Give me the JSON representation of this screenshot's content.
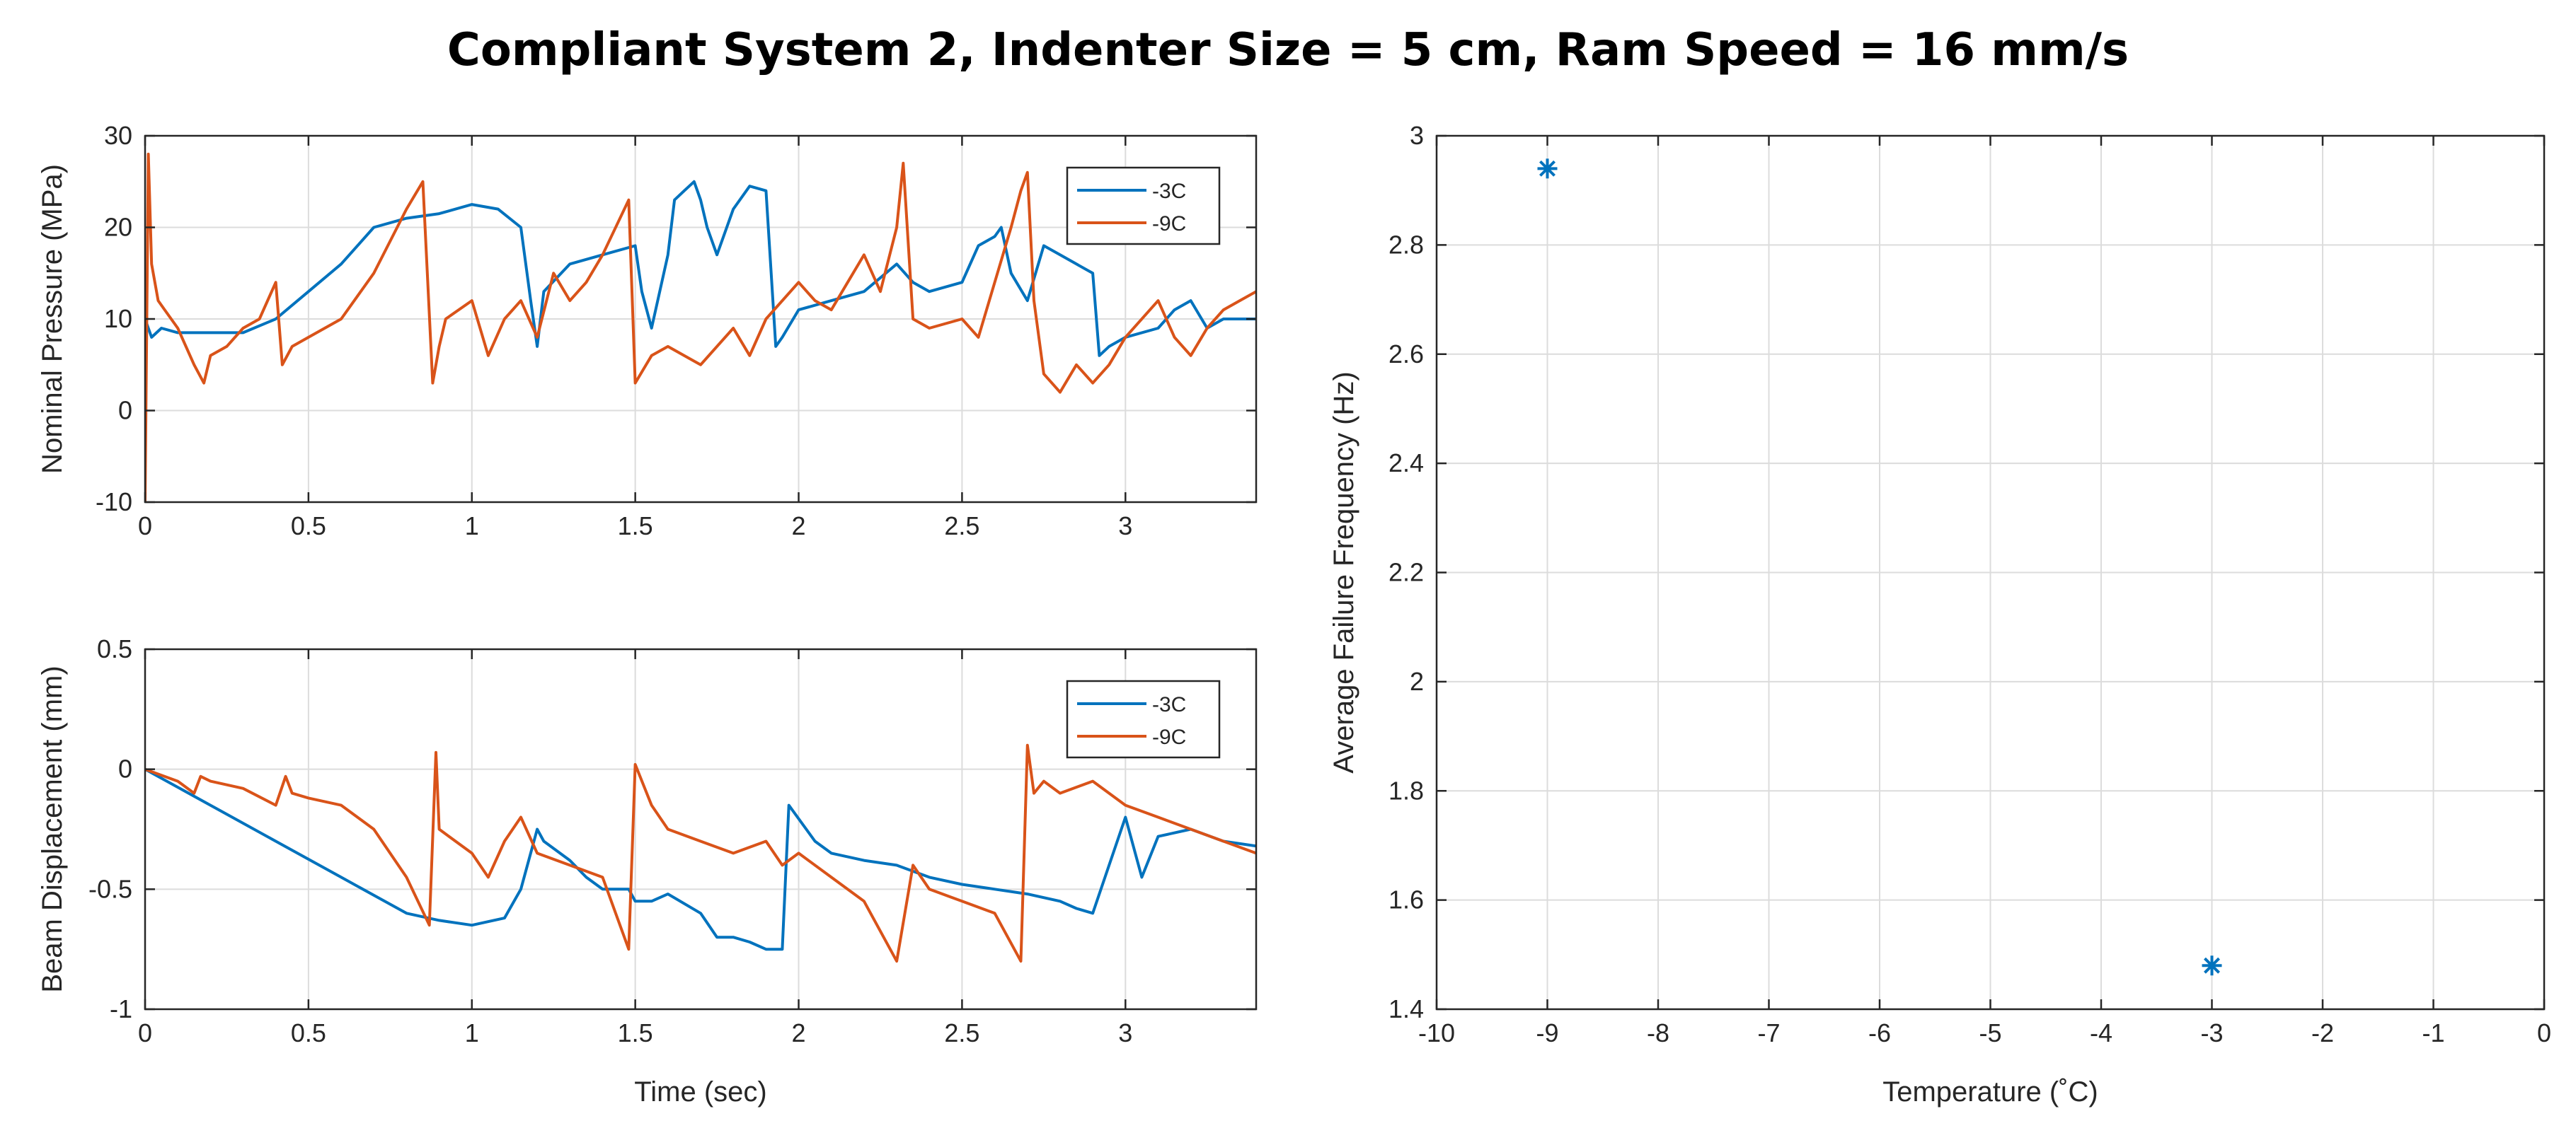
{
  "figure_title": "Compliant System 2, Indenter Size = 5 cm, Ram Speed = 16 mm/s",
  "colors": {
    "s3c": "#0072BD",
    "s9c": "#D95319",
    "grid": "#dcdcdc",
    "axis": "#262626"
  },
  "chart_data": [
    {
      "id": "pressure",
      "type": "line",
      "title": "",
      "xlabel": "",
      "ylabel": "Nominal Pressure (MPa)",
      "xlim": [
        0,
        3.4
      ],
      "ylim": [
        -10,
        30
      ],
      "xticks": [
        0,
        0.5,
        1,
        1.5,
        2,
        2.5,
        3
      ],
      "xtick_labels": [
        "0",
        "0.5",
        "1",
        "1.5",
        "2",
        "2.5",
        "3"
      ],
      "yticks": [
        -10,
        0,
        10,
        20,
        30
      ],
      "ytick_labels": [
        "-10",
        "0",
        "10",
        "20",
        "30"
      ],
      "grid": true,
      "legend_position": "top-right",
      "series": [
        {
          "name": "-3C",
          "color": "#0072BD",
          "x": [
            0,
            0.02,
            0.05,
            0.1,
            0.2,
            0.3,
            0.4,
            0.5,
            0.6,
            0.7,
            0.8,
            0.9,
            1.0,
            1.08,
            1.15,
            1.18,
            1.2,
            1.22,
            1.3,
            1.4,
            1.5,
            1.52,
            1.55,
            1.6,
            1.62,
            1.65,
            1.68,
            1.7,
            1.72,
            1.75,
            1.8,
            1.85,
            1.9,
            1.93,
            1.95,
            2.0,
            2.1,
            2.2,
            2.3,
            2.35,
            2.4,
            2.5,
            2.55,
            2.6,
            2.62,
            2.65,
            2.7,
            2.75,
            2.8,
            2.85,
            2.9,
            2.92,
            2.95,
            3.0,
            3.1,
            3.15,
            3.2,
            3.25,
            3.3,
            3.35,
            3.4
          ],
          "y": [
            10,
            8,
            9,
            8.5,
            8.5,
            8.5,
            10,
            13,
            16,
            20,
            21,
            21.5,
            22.5,
            22,
            20,
            12,
            7,
            13,
            16,
            17,
            18,
            13,
            9,
            17,
            23,
            24,
            25,
            23,
            20,
            17,
            22,
            24.5,
            24,
            7,
            8,
            11,
            12,
            13,
            16,
            14,
            13,
            14,
            18,
            19,
            20,
            15,
            12,
            18,
            17,
            16,
            15,
            6,
            7,
            8,
            9,
            11,
            12,
            9,
            10,
            10,
            10
          ]
        },
        {
          "name": "-9C",
          "color": "#D95319",
          "x": [
            0,
            0.01,
            0.02,
            0.04,
            0.06,
            0.1,
            0.15,
            0.18,
            0.2,
            0.25,
            0.3,
            0.35,
            0.4,
            0.42,
            0.45,
            0.5,
            0.6,
            0.7,
            0.8,
            0.85,
            0.88,
            0.9,
            0.92,
            1.0,
            1.05,
            1.1,
            1.15,
            1.2,
            1.25,
            1.3,
            1.35,
            1.4,
            1.48,
            1.5,
            1.55,
            1.6,
            1.7,
            1.8,
            1.85,
            1.9,
            2.0,
            2.05,
            2.1,
            2.15,
            2.2,
            2.25,
            2.3,
            2.32,
            2.35,
            2.4,
            2.5,
            2.55,
            2.6,
            2.65,
            2.68,
            2.7,
            2.72,
            2.75,
            2.8,
            2.85,
            2.9,
            2.95,
            3.0,
            3.1,
            3.15,
            3.2,
            3.25,
            3.3,
            3.35,
            3.4
          ],
          "y": [
            -10,
            28,
            16,
            12,
            11,
            9,
            5,
            3,
            6,
            7,
            9,
            10,
            14,
            5,
            7,
            8,
            10,
            15,
            22,
            25,
            3,
            7,
            10,
            12,
            6,
            10,
            12,
            8,
            15,
            12,
            14,
            17,
            23,
            3,
            6,
            7,
            5,
            9,
            6,
            10,
            14,
            12,
            11,
            14,
            17,
            13,
            20,
            27,
            10,
            9,
            10,
            8,
            14,
            20,
            24,
            26,
            12,
            4,
            2,
            5,
            3,
            5,
            8,
            12,
            8,
            6,
            9,
            11,
            12,
            13
          ]
        }
      ]
    },
    {
      "id": "displacement",
      "type": "line",
      "title": "",
      "xlabel": "Time (sec)",
      "ylabel": "Beam Displacement (mm)",
      "xlim": [
        0,
        3.4
      ],
      "ylim": [
        -1,
        0.5
      ],
      "xticks": [
        0,
        0.5,
        1,
        1.5,
        2,
        2.5,
        3
      ],
      "xtick_labels": [
        "0",
        "0.5",
        "1",
        "1.5",
        "2",
        "2.5",
        "3"
      ],
      "yticks": [
        -1,
        -0.5,
        0,
        0.5
      ],
      "ytick_labels": [
        "-1",
        "-0.5",
        "0",
        "0.5"
      ],
      "grid": true,
      "legend_position": "top-right",
      "series": [
        {
          "name": "-3C",
          "color": "#0072BD",
          "x": [
            0,
            0.2,
            0.4,
            0.6,
            0.8,
            0.9,
            1.0,
            1.1,
            1.15,
            1.2,
            1.22,
            1.3,
            1.35,
            1.4,
            1.48,
            1.5,
            1.55,
            1.6,
            1.7,
            1.75,
            1.8,
            1.85,
            1.9,
            1.95,
            1.97,
            2.05,
            2.1,
            2.2,
            2.3,
            2.4,
            2.5,
            2.6,
            2.7,
            2.8,
            2.85,
            2.9,
            2.95,
            3.0,
            3.05,
            3.1,
            3.2,
            3.3,
            3.4
          ],
          "y": [
            0,
            -0.15,
            -0.3,
            -0.45,
            -0.6,
            -0.63,
            -0.65,
            -0.62,
            -0.5,
            -0.25,
            -0.3,
            -0.38,
            -0.45,
            -0.5,
            -0.5,
            -0.55,
            -0.55,
            -0.52,
            -0.6,
            -0.7,
            -0.7,
            -0.72,
            -0.75,
            -0.75,
            -0.15,
            -0.3,
            -0.35,
            -0.38,
            -0.4,
            -0.45,
            -0.48,
            -0.5,
            -0.52,
            -0.55,
            -0.58,
            -0.6,
            -0.4,
            -0.2,
            -0.45,
            -0.28,
            -0.25,
            -0.3,
            -0.32
          ]
        },
        {
          "name": "-9C",
          "color": "#D95319",
          "x": [
            0,
            0.1,
            0.15,
            0.17,
            0.2,
            0.3,
            0.4,
            0.43,
            0.45,
            0.5,
            0.6,
            0.7,
            0.8,
            0.87,
            0.89,
            0.9,
            0.95,
            1.0,
            1.05,
            1.1,
            1.15,
            1.2,
            1.3,
            1.4,
            1.48,
            1.5,
            1.55,
            1.6,
            1.7,
            1.8,
            1.9,
            1.95,
            2.0,
            2.1,
            2.2,
            2.3,
            2.35,
            2.4,
            2.5,
            2.6,
            2.68,
            2.7,
            2.72,
            2.75,
            2.8,
            2.9,
            3.0,
            3.1,
            3.2,
            3.3,
            3.4
          ],
          "y": [
            0,
            -0.05,
            -0.1,
            -0.03,
            -0.05,
            -0.08,
            -0.15,
            -0.03,
            -0.1,
            -0.12,
            -0.15,
            -0.25,
            -0.45,
            -0.65,
            0.07,
            -0.25,
            -0.3,
            -0.35,
            -0.45,
            -0.3,
            -0.2,
            -0.35,
            -0.4,
            -0.45,
            -0.75,
            0.02,
            -0.15,
            -0.25,
            -0.3,
            -0.35,
            -0.3,
            -0.4,
            -0.35,
            -0.45,
            -0.55,
            -0.8,
            -0.4,
            -0.5,
            -0.55,
            -0.6,
            -0.8,
            0.1,
            -0.1,
            -0.05,
            -0.1,
            -0.05,
            -0.15,
            -0.2,
            -0.25,
            -0.3,
            -0.35
          ]
        }
      ]
    },
    {
      "id": "frequency",
      "type": "scatter",
      "title": "",
      "xlabel": "Temperature (˚C)",
      "ylabel": "Average Failure Frequency (Hz)",
      "xlim": [
        -10,
        0
      ],
      "ylim": [
        1.4,
        3
      ],
      "xticks": [
        -10,
        -9,
        -8,
        -7,
        -6,
        -5,
        -4,
        -3,
        -2,
        -1,
        0
      ],
      "xtick_labels": [
        "-10",
        "-9",
        "-8",
        "-7",
        "-6",
        "-5",
        "-4",
        "-3",
        "-2",
        "-1",
        "0"
      ],
      "yticks": [
        1.4,
        1.6,
        1.8,
        2,
        2.2,
        2.4,
        2.6,
        2.8,
        3
      ],
      "ytick_labels": [
        "1.4",
        "1.6",
        "1.8",
        "2",
        "2.2",
        "2.4",
        "2.6",
        "2.8",
        "3"
      ],
      "grid": true,
      "marker": "asterisk",
      "series": [
        {
          "name": "frequency",
          "color": "#0072BD",
          "x": [
            -9,
            -3
          ],
          "y": [
            2.94,
            1.48
          ]
        }
      ]
    }
  ]
}
